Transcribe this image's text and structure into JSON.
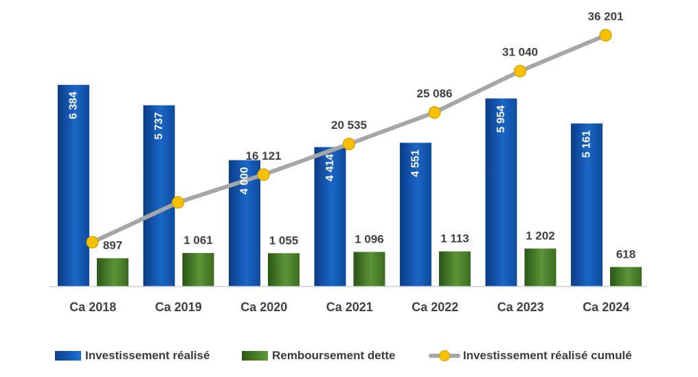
{
  "chart_data": {
    "type": "bar",
    "categories": [
      "Ca 2018",
      "Ca 2019",
      "Ca 2020",
      "Ca 2021",
      "Ca 2022",
      "Ca 2023",
      "Ca 2024"
    ],
    "series": [
      {
        "name": "Investissement réalisé",
        "type": "bar",
        "color": "#1560bd",
        "values": [
          6384,
          5737,
          4000,
          4414,
          4551,
          5954,
          5161
        ],
        "labels": [
          "6 384",
          "5 737",
          "4 000",
          "4 414",
          "4 551",
          "5 954",
          "5 161"
        ]
      },
      {
        "name": "Remboursement dette",
        "type": "bar",
        "color": "#4a7c2a",
        "values": [
          897,
          1061,
          1055,
          1096,
          1113,
          1202,
          618
        ],
        "labels": [
          "897",
          "1 061",
          "1 055",
          "1 096",
          "1 113",
          "1 202",
          "618"
        ]
      },
      {
        "name": "Investissement réalisé cumulé",
        "type": "line",
        "color": "#a6a6a6",
        "marker_color": "#f7c000",
        "values": [
          6384,
          12121,
          16121,
          20535,
          25086,
          31040,
          36201
        ],
        "labels": [
          "",
          "",
          "16 121",
          "20 535",
          "25 086",
          "31 040",
          "36 201"
        ]
      }
    ],
    "bar_axis_max": 6900,
    "line_axis_min": 0,
    "line_axis_max": 40000,
    "grid": false,
    "legend_position": "bottom"
  }
}
